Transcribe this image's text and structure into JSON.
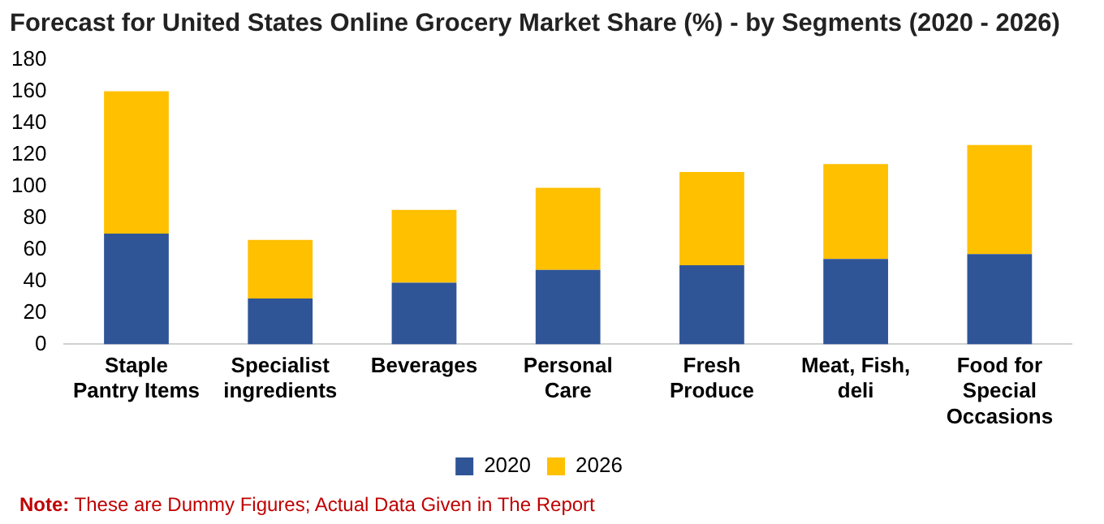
{
  "chart_data": {
    "type": "bar",
    "title": "Forecast for United States Online Grocery Market Share (%) - by Segments (2020 - 2026)",
    "categories": [
      "Staple Pantry Items",
      "Specialist ingredients",
      "Beverages",
      "Personal Care",
      "Fresh Produce",
      "Meat, Fish, deli",
      "Food for Special Occasions"
    ],
    "series": [
      {
        "name": "2020",
        "color": "#2f5597",
        "values": [
          70,
          29,
          39,
          47,
          50,
          54,
          57
        ]
      },
      {
        "name": "2026",
        "color": "#ffc000",
        "values": [
          90,
          37,
          46,
          52,
          59,
          60,
          69
        ]
      }
    ],
    "stacked": true,
    "ylim": [
      0,
      180
    ],
    "yticks": [
      0,
      20,
      40,
      60,
      80,
      100,
      120,
      140,
      160,
      180
    ],
    "grid": false,
    "legend": "bottom",
    "annotations": [
      "Note: These are Dummy Figures; Actual Data Given in The Report"
    ]
  }
}
